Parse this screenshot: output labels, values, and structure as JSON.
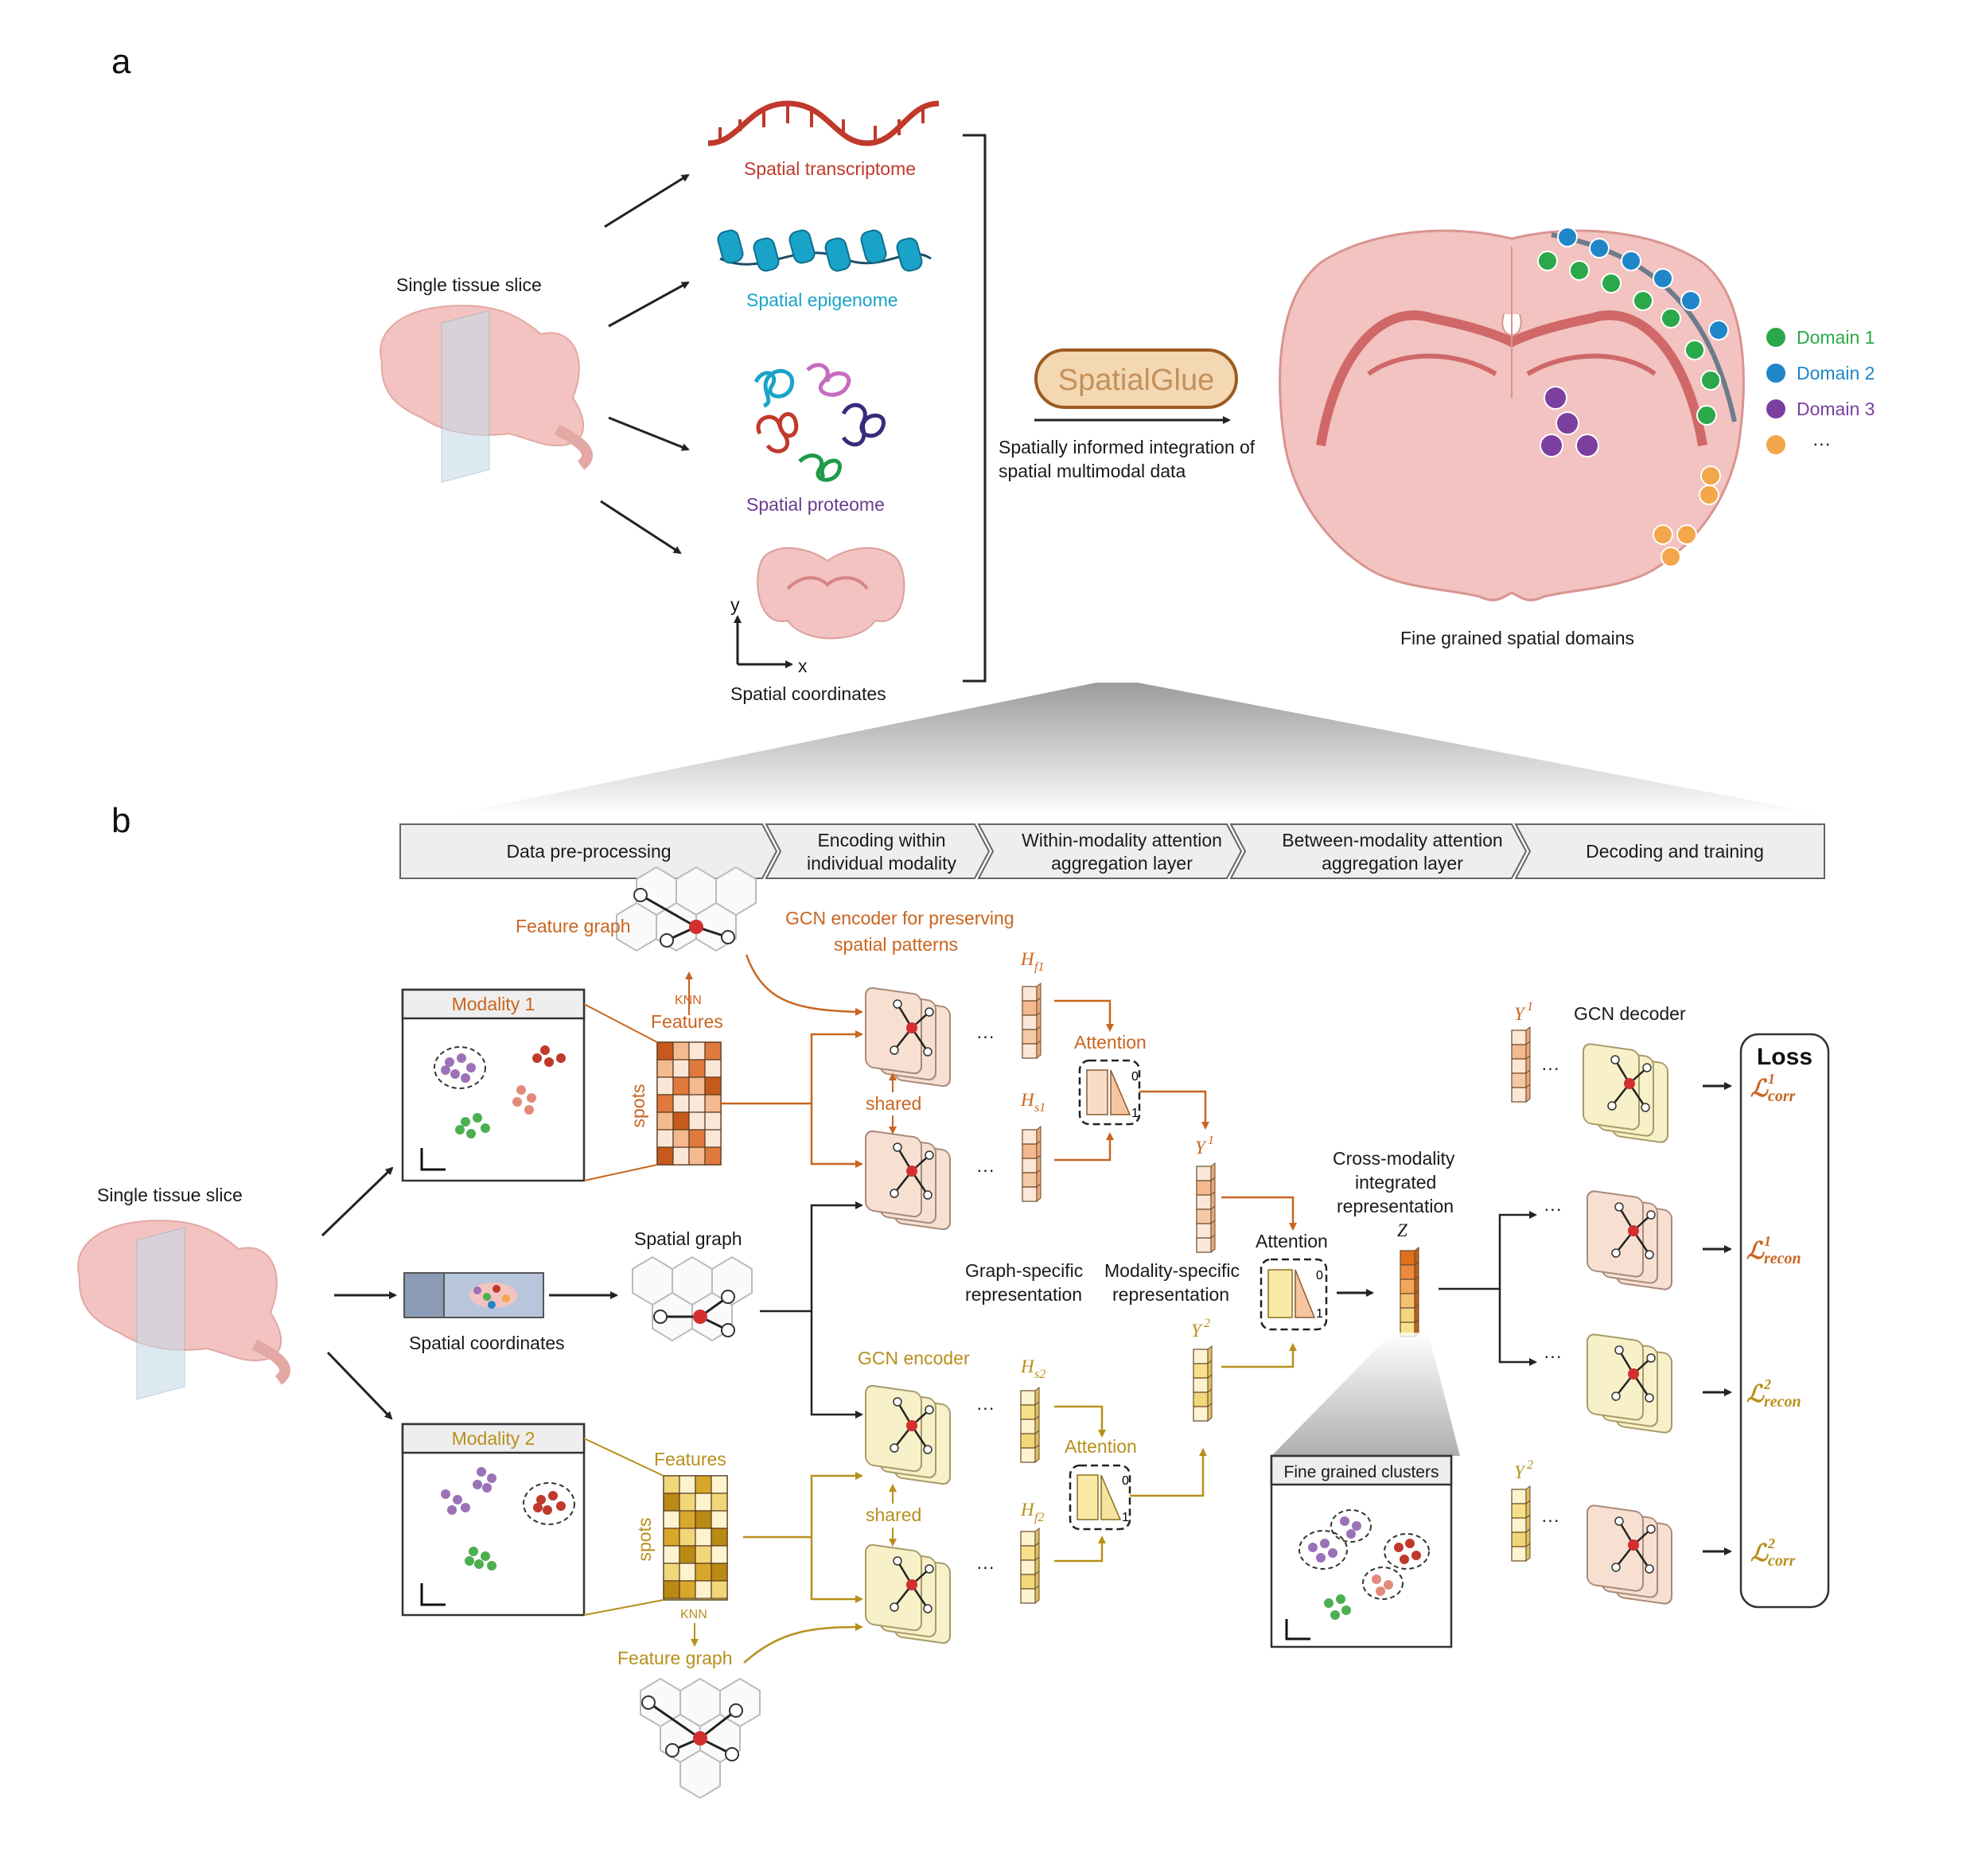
{
  "panels": {
    "a": "a",
    "b": "b"
  },
  "colors": {
    "transcriptome": "#c0392b",
    "epigenome": "#1aa3c9",
    "proteome": "#6c3b8f",
    "modality1": "#c9651f",
    "modality2": "#b7901c",
    "domain1": "#2aa84a",
    "domain2": "#1f86c9",
    "domain3": "#7b3fa0",
    "domain4": "#f4a64a",
    "brain": "#f2c3c0"
  },
  "panel_a": {
    "tissue_label": "Single tissue slice",
    "modalities": [
      {
        "label": "Spatial transcriptome"
      },
      {
        "label": "Spatial epigenome"
      },
      {
        "label": "Spatial proteome"
      },
      {
        "label": "Spatial coordinates"
      }
    ],
    "axis_y": "y",
    "axis_x": "x",
    "method_name": "SpatialGlue",
    "method_desc_line1": "Spatially informed integration of",
    "method_desc_line2": "spatial multimodal data",
    "output_label": "Fine grained spatial domains",
    "legend": [
      {
        "label": "Domain 1",
        "color": "#2aa84a"
      },
      {
        "label": "Domain 2",
        "color": "#1f86c9"
      },
      {
        "label": "Domain 3",
        "color": "#7b3fa0"
      },
      {
        "label": "···",
        "color": "#f4a64a"
      }
    ]
  },
  "panel_b": {
    "steps": [
      {
        "line1": "Data pre-processing",
        "line2": ""
      },
      {
        "line1": "Encoding within",
        "line2": "individual modality"
      },
      {
        "line1": "Within-modality attention",
        "line2": "aggregation layer"
      },
      {
        "line1": "Between-modality attention",
        "line2": "aggregation layer"
      },
      {
        "line1": "Decoding and training",
        "line2": ""
      }
    ],
    "tissue_label": "Single tissue slice",
    "modality1_title": "Modality 1",
    "modality2_title": "Modality 2",
    "features_label": "Features",
    "spots_label": "spots",
    "knn_label": "KNN",
    "feature_graph_label": "Feature graph",
    "spatial_coordinates_label": "Spatial coordinates",
    "spatial_graph_label": "Spatial graph",
    "gcn_encoder_top_line1": "GCN encoder for preserving",
    "gcn_encoder_top_line2": "spatial patterns",
    "gcn_encoder_bottom": "GCN encoder",
    "shared_label": "shared",
    "ellipsis": "···",
    "h_f1": "H",
    "h_f1_sub": "f1",
    "h_s1": "H",
    "h_s1_sub": "s1",
    "h_s2": "H",
    "h_s2_sub": "s2",
    "h_f2": "H",
    "h_f2_sub": "f2",
    "attention_label": "Attention",
    "att_zero": "0",
    "att_one": "1",
    "y1_label": "Y",
    "y1_sup": "1",
    "y2_label": "Y",
    "y2_sup": "2",
    "graph_specific_line1": "Graph-specific",
    "graph_specific_line2": "representation",
    "modality_specific_line1": "Modality-specific",
    "modality_specific_line2": "representation",
    "cross_modality_line1": "Cross-modality",
    "cross_modality_line2": "integrated",
    "cross_modality_line3": "representation",
    "z_label": "Z",
    "fine_clusters_title": "Fine grained clusters",
    "gcn_decoder_label": "GCN decoder",
    "loss_title": "Loss",
    "losses": [
      {
        "symbol": "ℒ",
        "sup": "1",
        "sub": "corr"
      },
      {
        "symbol": "ℒ",
        "sup": "1",
        "sub": "recon"
      },
      {
        "symbol": "ℒ",
        "sup": "2",
        "sub": "recon"
      },
      {
        "symbol": "ℒ",
        "sup": "2",
        "sub": "corr"
      }
    ]
  }
}
